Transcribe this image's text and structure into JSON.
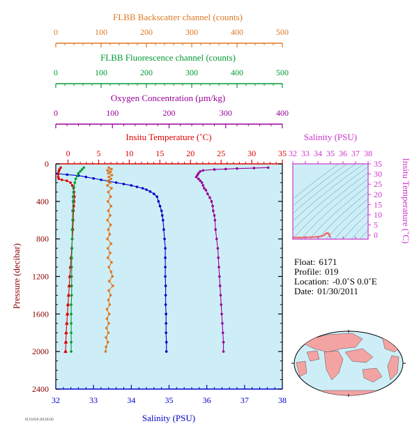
{
  "chart_data": [
    {
      "type": "line",
      "description_axes": {
        "pressure": {
          "label": "Pressure (decibar)",
          "ylim": [
            2400,
            0
          ],
          "ticks": [
            "0",
            "400",
            "800",
            "1200",
            "1600",
            "2000",
            "2400"
          ]
        },
        "salinity": {
          "label": "Salinity (PSU)",
          "xlim": [
            32,
            38
          ],
          "ticks": [
            "32",
            "33",
            "34",
            "35",
            "36",
            "37",
            "38"
          ]
        },
        "temperature": {
          "label": "Insitu Temperature (˚C)",
          "xlim": [
            -2,
            35
          ],
          "ticks": [
            "0",
            "5",
            "10",
            "15",
            "20",
            "25",
            "30",
            "35"
          ]
        },
        "oxygen": {
          "label": "Oxygen Concentration (µm/kg)",
          "xlim": [
            0,
            400
          ],
          "ticks": [
            "0",
            "100",
            "200",
            "300",
            "400"
          ]
        },
        "fluorescence": {
          "label": "FLBB Fluorescence channel (counts)",
          "xlim": [
            0,
            500
          ],
          "ticks": [
            "0",
            "100",
            "200",
            "300",
            "400",
            "500"
          ]
        },
        "backscatter": {
          "label": "FLBB Backscatter channel (counts)",
          "xlim": [
            0,
            500
          ],
          "ticks": [
            "0",
            "100",
            "200",
            "300",
            "400",
            "500"
          ]
        }
      },
      "series": [
        {
          "name": "Salinity (PSU)",
          "axis": "salinity",
          "color": "#0000cc",
          "marker": "circle",
          "points": [
            [
              32.05,
              105
            ],
            [
              32.3,
              115
            ],
            [
              32.6,
              125
            ],
            [
              32.8,
              140
            ],
            [
              33.0,
              155
            ],
            [
              33.2,
              170
            ],
            [
              33.4,
              185
            ],
            [
              33.6,
              200
            ],
            [
              33.8,
              215
            ],
            [
              34.0,
              230
            ],
            [
              34.15,
              245
            ],
            [
              34.3,
              260
            ],
            [
              34.4,
              275
            ],
            [
              34.5,
              295
            ],
            [
              34.6,
              320
            ],
            [
              34.68,
              350
            ],
            [
              34.72,
              400
            ],
            [
              34.76,
              450
            ],
            [
              34.8,
              500
            ],
            [
              34.82,
              550
            ],
            [
              34.84,
              600
            ],
            [
              34.86,
              700
            ],
            [
              34.88,
              800
            ],
            [
              34.9,
              900
            ],
            [
              34.9,
              1000
            ],
            [
              34.9,
              1100
            ],
            [
              34.9,
              1200
            ],
            [
              34.91,
              1300
            ],
            [
              34.91,
              1400
            ],
            [
              34.91,
              1500
            ],
            [
              34.92,
              1600
            ],
            [
              34.92,
              1700
            ],
            [
              34.92,
              1800
            ],
            [
              34.93,
              1900
            ],
            [
              34.93,
              2000
            ]
          ]
        },
        {
          "name": "Insitu Temperature (˚C)",
          "axis": "temperature",
          "color": "#dd0000",
          "marker": "circle",
          "points": [
            [
              -1.2,
              40
            ],
            [
              -1.4,
              60
            ],
            [
              -1.5,
              80
            ],
            [
              -1.6,
              110
            ],
            [
              -1.6,
              140
            ],
            [
              -1.5,
              160
            ],
            [
              -1.0,
              170
            ],
            [
              -0.2,
              180
            ],
            [
              0.4,
              200
            ],
            [
              0.7,
              230
            ],
            [
              0.9,
              260
            ],
            [
              1.0,
              300
            ],
            [
              1.05,
              350
            ],
            [
              1.0,
              400
            ],
            [
              0.95,
              450
            ],
            [
              0.9,
              500
            ],
            [
              0.85,
              600
            ],
            [
              0.8,
              700
            ],
            [
              0.7,
              800
            ],
            [
              0.6,
              900
            ],
            [
              0.5,
              1000
            ],
            [
              0.4,
              1100
            ],
            [
              0.3,
              1200
            ],
            [
              0.2,
              1300
            ],
            [
              0.1,
              1400
            ],
            [
              0.0,
              1500
            ],
            [
              -0.1,
              1600
            ],
            [
              -0.2,
              1700
            ],
            [
              -0.3,
              1800
            ],
            [
              -0.35,
              1900
            ],
            [
              -0.4,
              2000
            ]
          ]
        },
        {
          "name": "Oxygen Concentration (µm/kg)",
          "axis": "oxygen",
          "color": "#990099",
          "marker": "circle",
          "points": [
            [
              375,
              40
            ],
            [
              350,
              45
            ],
            [
              320,
              50
            ],
            [
              300,
              55
            ],
            [
              280,
              60
            ],
            [
              260,
              70
            ],
            [
              255,
              80
            ],
            [
              252,
              100
            ],
            [
              250,
              120
            ],
            [
              248,
              140
            ],
            [
              252,
              160
            ],
            [
              255,
              180
            ],
            [
              258,
              200
            ],
            [
              260,
              230
            ],
            [
              262,
              260
            ],
            [
              265,
              280
            ],
            [
              268,
              320
            ],
            [
              272,
              360
            ],
            [
              275,
              400
            ],
            [
              277,
              450
            ],
            [
              278,
              500
            ],
            [
              280,
              550
            ],
            [
              281,
              600
            ],
            [
              282,
              700
            ],
            [
              284,
              800
            ],
            [
              286,
              900
            ],
            [
              287,
              1000
            ],
            [
              288,
              1100
            ],
            [
              289,
              1200
            ],
            [
              290,
              1300
            ],
            [
              291,
              1400
            ],
            [
              292,
              1500
            ],
            [
              293,
              1600
            ],
            [
              294,
              1700
            ],
            [
              295,
              1800
            ],
            [
              296,
              1900
            ],
            [
              296,
              2000
            ]
          ]
        },
        {
          "name": "FLBB Fluorescence channel (counts)",
          "axis": "fluorescence",
          "color": "#009933",
          "marker": "circle",
          "points": [
            [
              62,
              40
            ],
            [
              58,
              60
            ],
            [
              54,
              80
            ],
            [
              50,
              100
            ],
            [
              47,
              130
            ],
            [
              44,
              160
            ],
            [
              42,
              200
            ],
            [
              40,
              250
            ],
            [
              39,
              300
            ],
            [
              38,
              350
            ],
            [
              38,
              400
            ],
            [
              37,
              500
            ],
            [
              37,
              600
            ],
            [
              36,
              700
            ],
            [
              36,
              800
            ],
            [
              36,
              900
            ],
            [
              35,
              1000
            ],
            [
              35,
              1100
            ],
            [
              35,
              1200
            ],
            [
              35,
              1300
            ],
            [
              35,
              1400
            ],
            [
              34,
              1500
            ],
            [
              34,
              1600
            ],
            [
              34,
              1700
            ],
            [
              34,
              1800
            ],
            [
              34,
              1900
            ],
            [
              34,
              2000
            ]
          ]
        },
        {
          "name": "FLBB Backscatter channel (counts)",
          "axis": "backscatter",
          "color": "#dd7722",
          "marker": "circle",
          "points": [
            [
              117,
              40
            ],
            [
              123,
              55
            ],
            [
              114,
              70
            ],
            [
              121,
              85
            ],
            [
              116,
              100
            ],
            [
              124,
              120
            ],
            [
              117,
              140
            ],
            [
              122,
              160
            ],
            [
              115,
              180
            ],
            [
              120,
              200
            ],
            [
              114,
              230
            ],
            [
              123,
              260
            ],
            [
              116,
              300
            ],
            [
              121,
              350
            ],
            [
              115,
              400
            ],
            [
              122,
              450
            ],
            [
              116,
              500
            ],
            [
              120,
              550
            ],
            [
              114,
              600
            ],
            [
              121,
              650
            ],
            [
              116,
              700
            ],
            [
              119,
              750
            ],
            [
              114,
              800
            ],
            [
              122,
              850
            ],
            [
              115,
              900
            ],
            [
              120,
              950
            ],
            [
              115,
              1000
            ],
            [
              123,
              1050
            ],
            [
              117,
              1100
            ],
            [
              122,
              1150
            ],
            [
              125,
              1200
            ],
            [
              118,
              1250
            ],
            [
              126,
              1300
            ],
            [
              117,
              1350
            ],
            [
              121,
              1400
            ],
            [
              116,
              1450
            ],
            [
              119,
              1500
            ],
            [
              113,
              1550
            ],
            [
              118,
              1600
            ],
            [
              113,
              1650
            ],
            [
              117,
              1700
            ],
            [
              112,
              1750
            ],
            [
              116,
              1800
            ],
            [
              111,
              1850
            ],
            [
              115,
              1900
            ],
            [
              111,
              1950
            ],
            [
              110,
              2000
            ]
          ]
        }
      ]
    },
    {
      "type": "scatter",
      "xlabel": "Salinity (PSU)",
      "ylabel": "Insitu Temperature (˚C)",
      "xlim": [
        32,
        38
      ],
      "ylim": [
        -2,
        35
      ],
      "xticks": [
        "32",
        "33",
        "34",
        "35",
        "36",
        "37",
        "38"
      ],
      "yticks": [
        "0",
        "5",
        "10",
        "15",
        "20",
        "25",
        "30",
        "35"
      ],
      "series": [
        {
          "color": "#ee6666",
          "points": [
            [
              32.05,
              -1.2
            ],
            [
              32.5,
              -1.2
            ],
            [
              33.0,
              -1.1
            ],
            [
              33.5,
              -1.0
            ],
            [
              34.0,
              -0.8
            ],
            [
              34.3,
              -0.5
            ],
            [
              34.5,
              0.0
            ],
            [
              34.6,
              0.6
            ],
            [
              34.7,
              0.9
            ],
            [
              34.75,
              1.0
            ],
            [
              34.8,
              0.9
            ],
            [
              34.85,
              0.7
            ],
            [
              34.9,
              0.3
            ],
            [
              34.92,
              -0.3
            ],
            [
              34.93,
              -0.4
            ]
          ]
        }
      ]
    }
  ],
  "info": {
    "float_label": "Float:",
    "float_value": "6171",
    "profile_label": "Profile:",
    "profile_value": "019",
    "location_label": "Location:",
    "location_value": "-0.0˚S   0.0˚E",
    "date_label": "Date:",
    "date_value": "01/30/2011"
  },
  "footer_tag": "6171/019  20110130",
  "colors": {
    "plot_bg": "#cdeef6",
    "salinity": "#0000cc",
    "temperature": "#dd0000",
    "oxygen": "#990099",
    "fluorescence": "#009933",
    "backscatter": "#dd7722",
    "ts_axes": "#cc33cc",
    "land": "#f4a3a3",
    "ocean": "#cdeef6"
  }
}
